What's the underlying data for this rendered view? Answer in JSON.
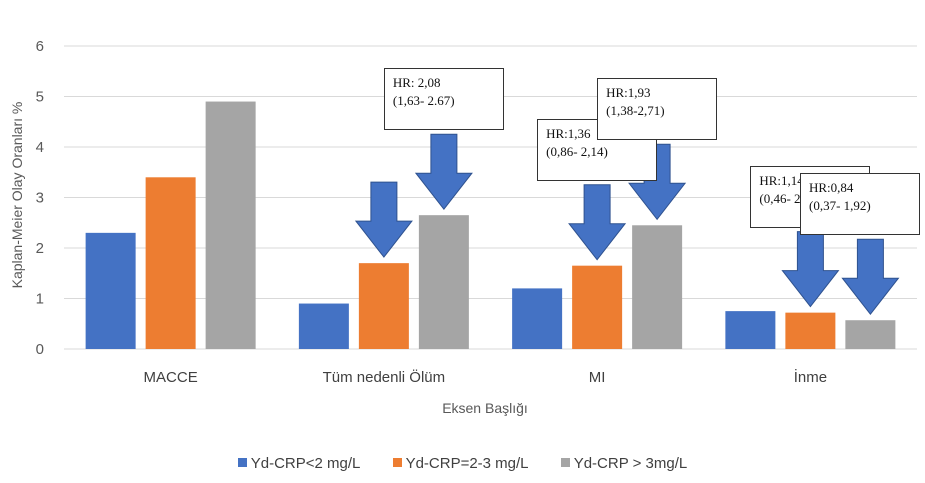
{
  "chart_data": {
    "type": "bar",
    "title": "",
    "xlabel": "Eksen Başlığı",
    "ylabel": "Kaplan-Meier Olay Oranları %",
    "ylim": [
      0,
      6
    ],
    "yticks": [
      "0",
      "1",
      "2",
      "3",
      "4",
      "5",
      "6"
    ],
    "categories": [
      "MACCE",
      "Tüm nedenli Ölüm",
      "MI",
      "İnme"
    ],
    "series": [
      {
        "name": "Yd-CRP<2 mg/L",
        "color": "#4472c4",
        "values": [
          2.3,
          0.9,
          1.2,
          0.75
        ]
      },
      {
        "name": "Yd-CRP=2-3 mg/L",
        "color": "#ed7d31",
        "values": [
          3.4,
          1.7,
          1.65,
          0.72
        ]
      },
      {
        "name": "Yd-CRP > 3mg/L",
        "color": "#a5a5a5",
        "values": [
          4.9,
          2.65,
          2.45,
          0.57
        ]
      }
    ],
    "grid": true,
    "legend_position": "bottom",
    "annotations": [
      {
        "category": "Tüm nedenli Ölüm",
        "series": "Yd-CRP=2-3 mg/L",
        "line1": "",
        "line2": ""
      },
      {
        "category": "Tüm nedenli Ölüm",
        "series": "Yd-CRP > 3mg/L",
        "line1": "HR: 2,08",
        "line2": "(1,63- 2.67)"
      },
      {
        "category": "MI",
        "series": "Yd-CRP=2-3 mg/L",
        "line1": "HR:1,36",
        "line2": "(0,86- 2,14)"
      },
      {
        "category": "MI",
        "series": "Yd-CRP > 3mg/L",
        "line1": "HR:1,93",
        "line2": "(1,38-2,71)"
      },
      {
        "category": "İnme",
        "series": "Yd-CRP=2-3 mg/L",
        "line1": "HR:1,14",
        "line2": "(0,46- 2,84)"
      },
      {
        "category": "İnme",
        "series": "Yd-CRP > 3mg/L",
        "line1": "HR:0,84",
        "line2": "(0,37- 1,92)"
      }
    ],
    "arrow_color": "#4472c4"
  }
}
